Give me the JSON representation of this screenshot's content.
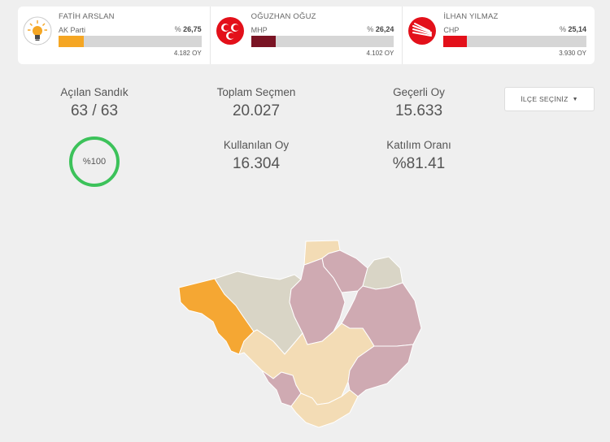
{
  "candidates": [
    {
      "name": "FATİH ARSLAN",
      "party": "AK Parti",
      "pct_prefix": "%",
      "pct": "26,75",
      "pct_value": 26.75,
      "votes": "4.182 OY",
      "color": "#f5a623",
      "logo": "akparti-bulb-icon"
    },
    {
      "name": "OĞUZHAN OĞUZ",
      "party": "MHP",
      "pct_prefix": "%",
      "pct": "26,24",
      "pct_value": 26.24,
      "votes": "4.102 OY",
      "color": "#7a1424",
      "logo": "mhp-crescents-icon"
    },
    {
      "name": "İLHAN YILMAZ",
      "party": "CHP",
      "pct_prefix": "%",
      "pct": "25,14",
      "pct_value": 25.14,
      "votes": "3.930 OY",
      "color": "#e3101a",
      "logo": "chp-six-arrows-icon"
    }
  ],
  "stats": {
    "acilan_sandik": {
      "label": "Açılan Sandık",
      "value": "63 / 63"
    },
    "progress": {
      "label": "%100",
      "value": 100,
      "color": "#3cc25a"
    },
    "toplam_secmen": {
      "label": "Toplam Seçmen",
      "value": "20.027"
    },
    "kullanilan_oy": {
      "label": "Kullanılan Oy",
      "value": "16.304"
    },
    "gecerli_oy": {
      "label": "Geçerli Oy",
      "value": "15.633"
    },
    "katilim_orani": {
      "label": "Katılım Oranı",
      "value": "%81.41"
    }
  },
  "district_select": {
    "label": "İLÇE SEÇİNİZ",
    "caret": "▼"
  },
  "map": {
    "colors": {
      "akp_strong": "#f5a733",
      "akp_light": "#f3dcb5",
      "mhp": "#cfaab2",
      "other": "#d9d5c6"
    }
  }
}
